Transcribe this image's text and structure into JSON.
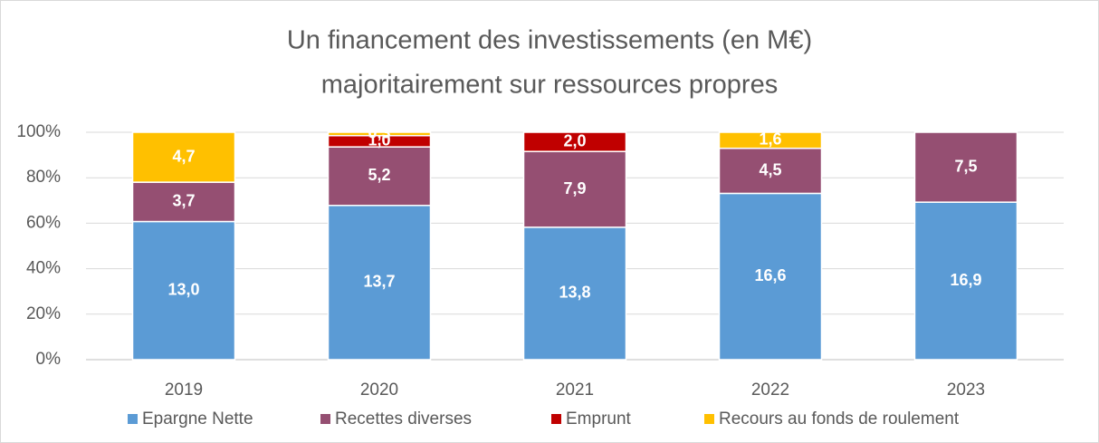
{
  "chart_data": {
    "type": "bar",
    "stacked": "percent",
    "title": [
      "Un financement des investissements (en M€)",
      "majoritairement sur ressources propres"
    ],
    "categories": [
      "2019",
      "2020",
      "2021",
      "2022",
      "2023"
    ],
    "series": [
      {
        "name": "Epargne Nette",
        "color": "#5b9bd5",
        "values": [
          13.0,
          13.7,
          13.8,
          16.6,
          16.9
        ],
        "value_labels": [
          "13,0",
          "13,7",
          "13,8",
          "16,6",
          "16,9"
        ]
      },
      {
        "name": "Recettes diverses",
        "color": "#954f72",
        "values": [
          3.7,
          5.2,
          7.9,
          4.5,
          7.5
        ],
        "value_labels": [
          "3,7",
          "5,2",
          "7,9",
          "4,5",
          "7,5"
        ]
      },
      {
        "name": "Emprunt",
        "color": "#c00000",
        "values": [
          null,
          1.0,
          2.0,
          null,
          null
        ],
        "value_labels": [
          null,
          "1,0",
          "2,0",
          null,
          null
        ]
      },
      {
        "name": "Recours au fonds de roulement",
        "color": "#ffc000",
        "values": [
          4.7,
          0.3,
          null,
          1.6,
          null
        ],
        "value_labels": [
          "4,7",
          "0,3",
          null,
          "1,6",
          null
        ]
      }
    ],
    "ylim": [
      0,
      100
    ],
    "yticks": [
      {
        "value": 0,
        "label": "0%"
      },
      {
        "value": 20,
        "label": "20%"
      },
      {
        "value": 40,
        "label": "40%"
      },
      {
        "value": 60,
        "label": "60%"
      },
      {
        "value": 80,
        "label": "80%"
      },
      {
        "value": 100,
        "label": "100%"
      }
    ],
    "grid": true,
    "legend": "bottom"
  }
}
